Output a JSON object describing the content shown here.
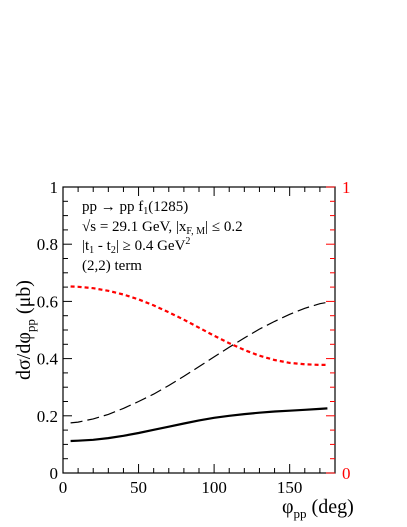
{
  "chart_data": {
    "type": "line",
    "xlabel": {
      "main": "φ",
      "sub": "pp",
      "unit": " (deg)"
    },
    "ylabel": {
      "main": "dσ/dφ",
      "sub": "pp",
      "unit": "  (μb)"
    },
    "xlim": [
      0,
      180
    ],
    "ylim": [
      0,
      1
    ],
    "y2lim": [
      0,
      1
    ],
    "x_ticks": [
      0,
      50,
      100,
      150
    ],
    "y_ticks": [
      0,
      0.2,
      0.4,
      0.6,
      0.8,
      1
    ],
    "y_tick_labels": [
      "0",
      "0.2",
      "0.4",
      "0.6",
      "0.8",
      "1"
    ],
    "y2_tick_labels": [
      "0",
      "1"
    ],
    "y2_color": "#ff0000",
    "grid": false,
    "annotations": {
      "line1": "pp → pp f",
      "line1_sub": "1",
      "line1_end": "(1285)",
      "line2_a": "√s = 29.1 GeV,  |x",
      "line2_sub": "F, M",
      "line2_b": "| ≤ 0.2",
      "line3_a": "|t",
      "line3_sub1": "1",
      "line3_mid": " - t",
      "line3_sub2": "2",
      "line3_b": "| ≥ 0.4 GeV",
      "line3_sup": "2",
      "line4": "(2,2) term"
    },
    "series": [
      {
        "style": "solid",
        "color": "#000000",
        "x": [
          5,
          10,
          20,
          30,
          40,
          50,
          60,
          70,
          80,
          90,
          100,
          110,
          120,
          130,
          140,
          150,
          160,
          170,
          175
        ],
        "y": [
          0.112,
          0.113,
          0.116,
          0.122,
          0.13,
          0.14,
          0.151,
          0.162,
          0.173,
          0.184,
          0.193,
          0.2,
          0.206,
          0.211,
          0.215,
          0.218,
          0.221,
          0.224,
          0.226
        ]
      },
      {
        "style": "dashed",
        "color": "#000000",
        "x": [
          5,
          10,
          20,
          30,
          40,
          50,
          60,
          70,
          80,
          90,
          100,
          110,
          120,
          130,
          140,
          150,
          160,
          170,
          175
        ],
        "y": [
          0.175,
          0.178,
          0.189,
          0.205,
          0.226,
          0.25,
          0.276,
          0.306,
          0.338,
          0.372,
          0.406,
          0.44,
          0.472,
          0.503,
          0.53,
          0.555,
          0.576,
          0.592,
          0.597
        ]
      },
      {
        "style": "dotted",
        "color": "#ff0000",
        "x": [
          5,
          10,
          20,
          30,
          40,
          50,
          60,
          70,
          80,
          90,
          100,
          110,
          120,
          130,
          140,
          150,
          160,
          170,
          175
        ],
        "y": [
          0.652,
          0.651,
          0.646,
          0.637,
          0.624,
          0.607,
          0.586,
          0.562,
          0.536,
          0.508,
          0.48,
          0.454,
          0.43,
          0.41,
          0.395,
          0.385,
          0.38,
          0.378,
          0.378
        ]
      }
    ]
  }
}
